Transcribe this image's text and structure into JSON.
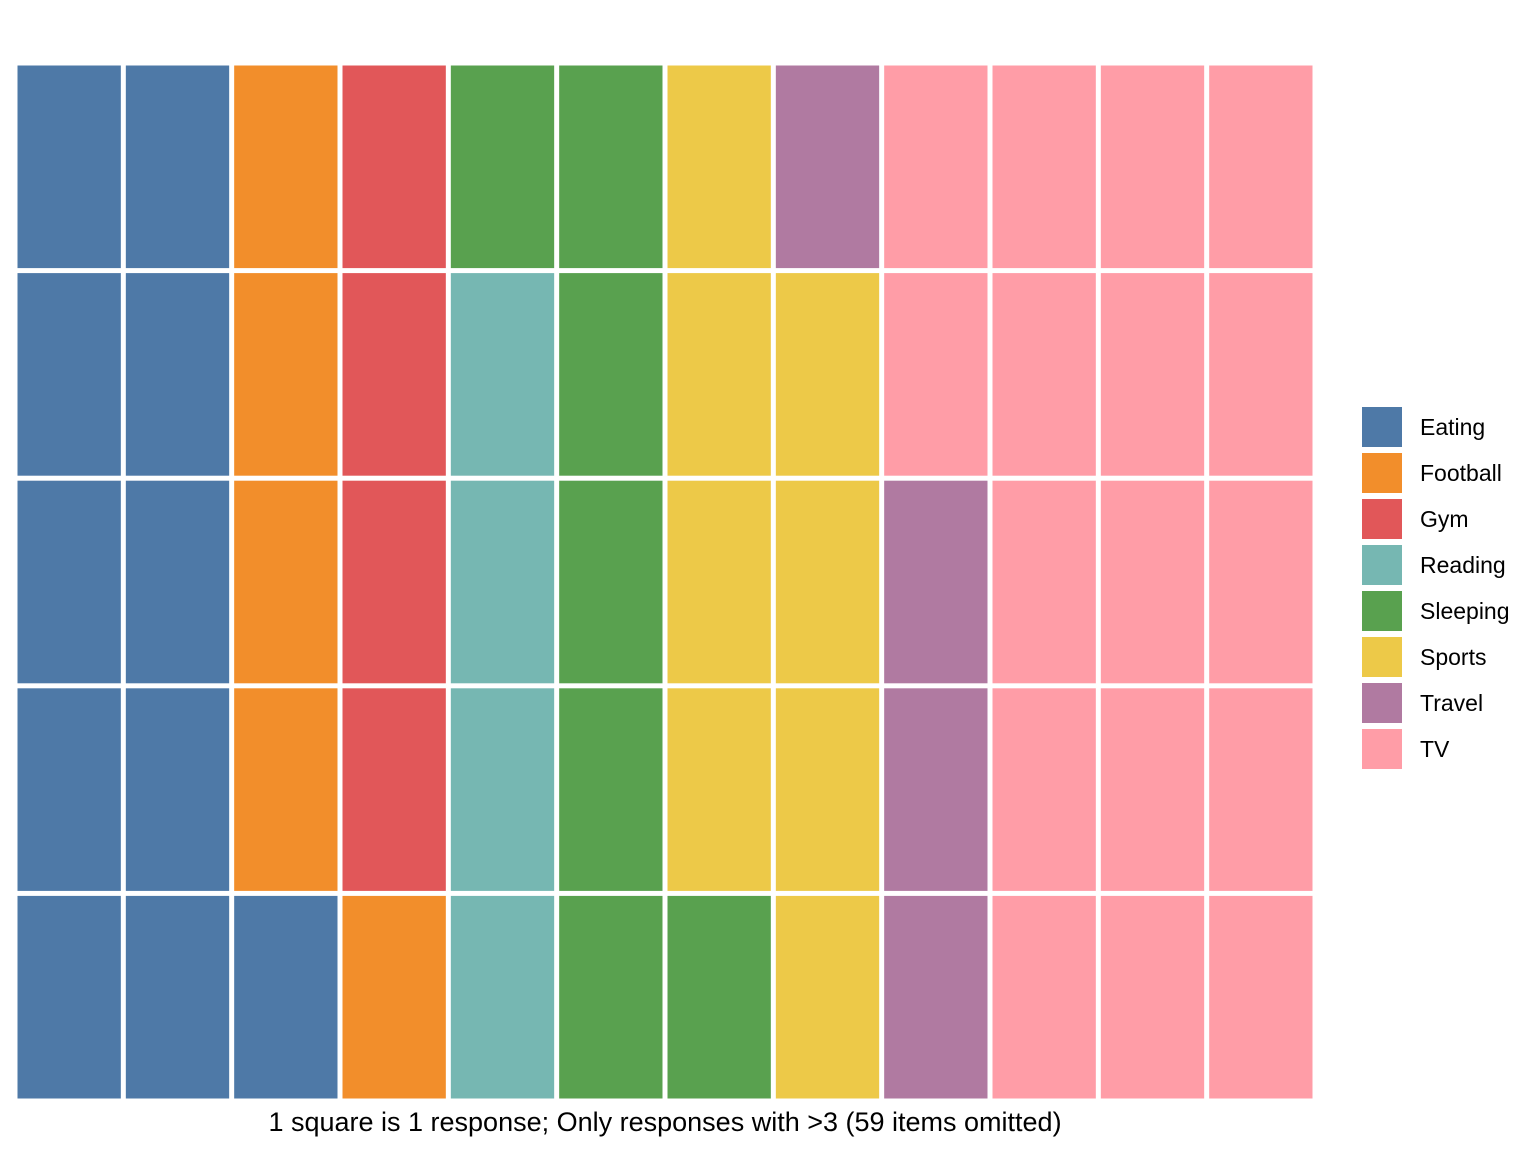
{
  "chart_data": {
    "type": "waffle",
    "caption": "1 square is 1 response; Only responses with >3 (59 items omitted)",
    "legend_position": "right",
    "units_per_square": 1,
    "rows": 5,
    "columns": 12,
    "fill_order": "column-major, bottom-to-top, left-to-right",
    "categories": [
      {
        "name": "Eating",
        "count": 11,
        "color": "#4e79a7"
      },
      {
        "name": "Football",
        "count": 5,
        "color": "#f28e2b"
      },
      {
        "name": "Gym",
        "count": 4,
        "color": "#e15759"
      },
      {
        "name": "Reading",
        "count": 4,
        "color": "#76b7b2"
      },
      {
        "name": "Sleeping",
        "count": 7,
        "color": "#59a14f"
      },
      {
        "name": "Sports",
        "count": 8,
        "color": "#edc948"
      },
      {
        "name": "Travel",
        "count": 4,
        "color": "#b07aa1"
      },
      {
        "name": "TV",
        "count": 17,
        "color": "#ff9da7"
      }
    ]
  }
}
